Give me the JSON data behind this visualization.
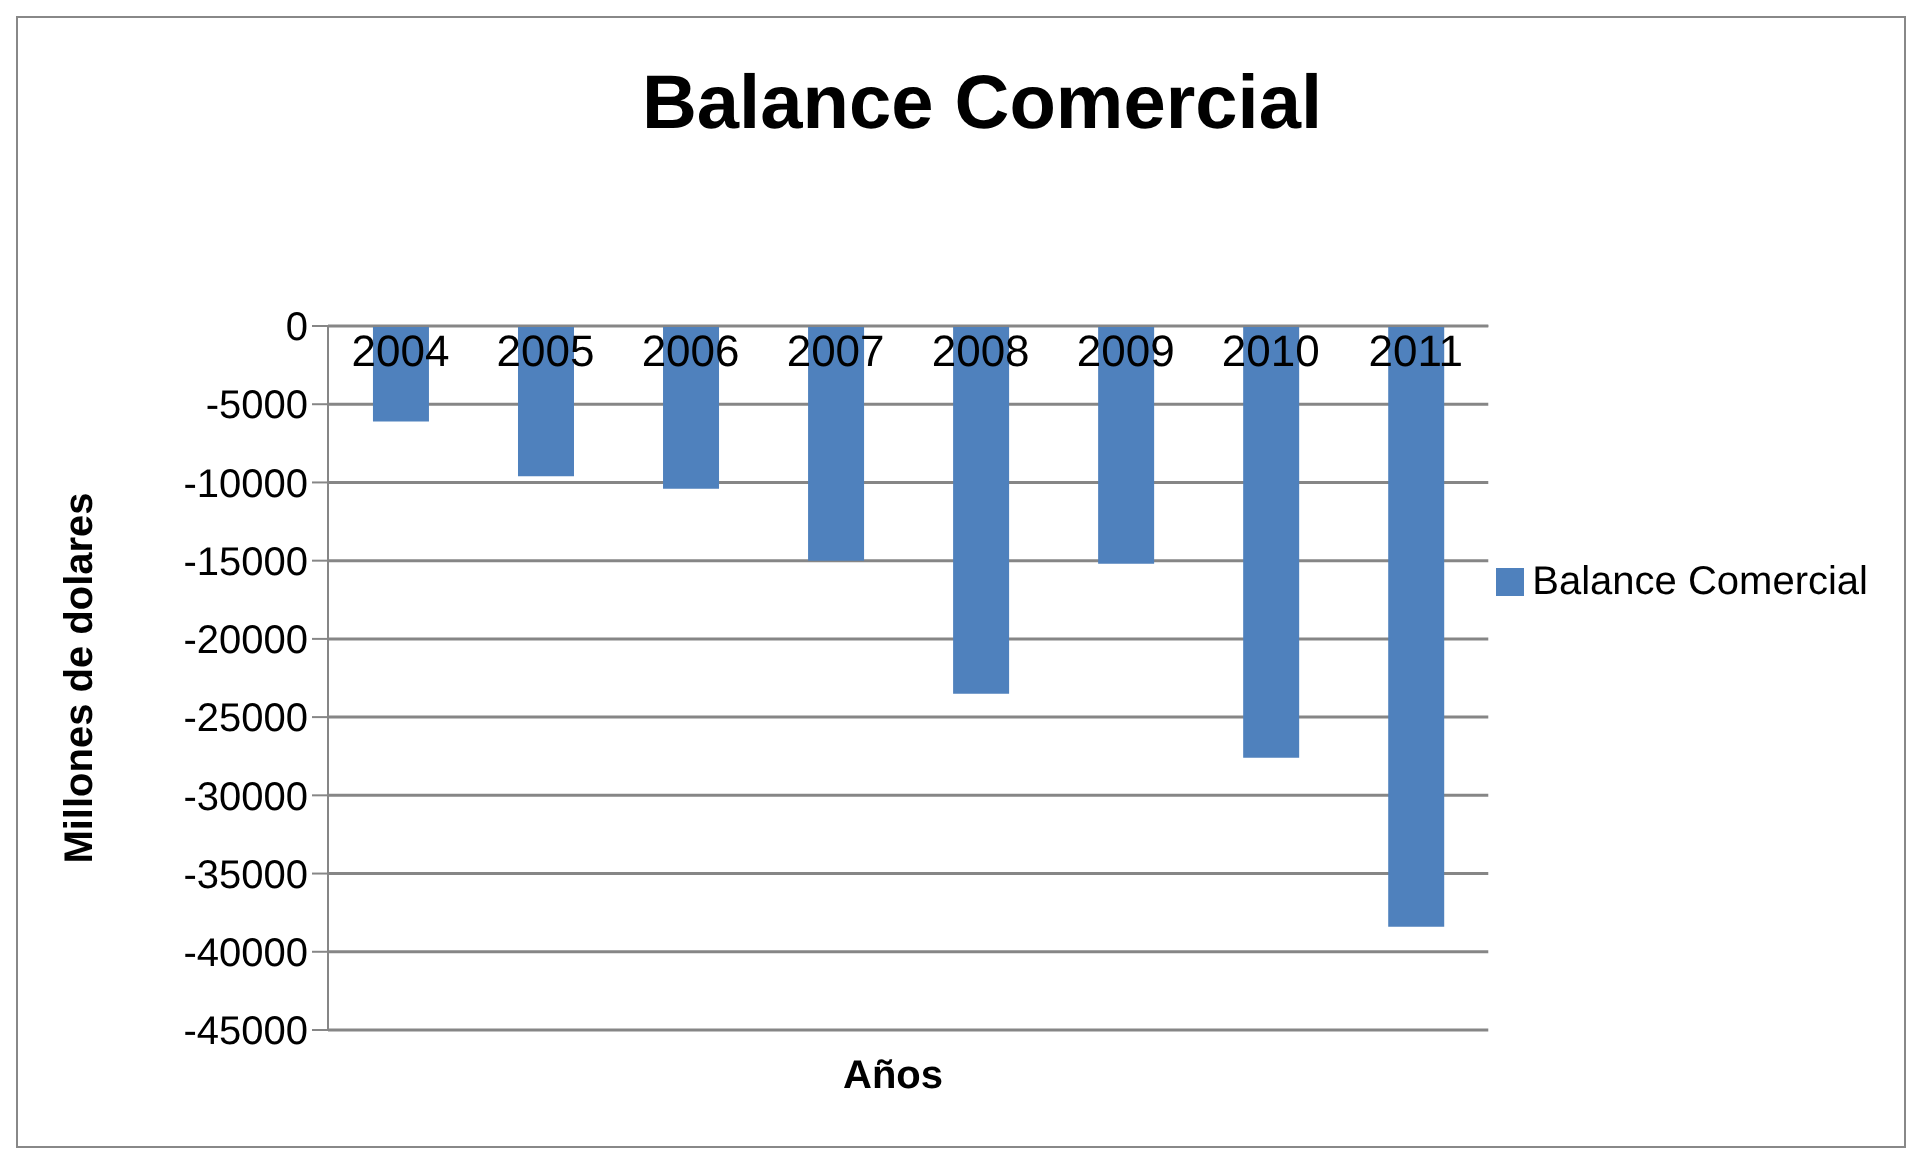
{
  "chart_data": {
    "type": "bar",
    "title": "Balance Comercial",
    "xlabel": "Años",
    "ylabel": "Millones de dolares",
    "categories": [
      "2004",
      "2005",
      "2006",
      "2007",
      "2008",
      "2009",
      "2010",
      "2011"
    ],
    "series": [
      {
        "name": "Balance Comercial",
        "color": "#4f81bd",
        "values": [
          -6100,
          -9600,
          -10400,
          -15000,
          -23500,
          -15200,
          -27600,
          -38400
        ]
      }
    ],
    "ylim": [
      -45000,
      0
    ],
    "yticks": [
      0,
      -5000,
      -10000,
      -15000,
      -20000,
      -25000,
      -30000,
      -35000,
      -40000,
      -45000
    ],
    "grid": "y",
    "legend": "right"
  }
}
